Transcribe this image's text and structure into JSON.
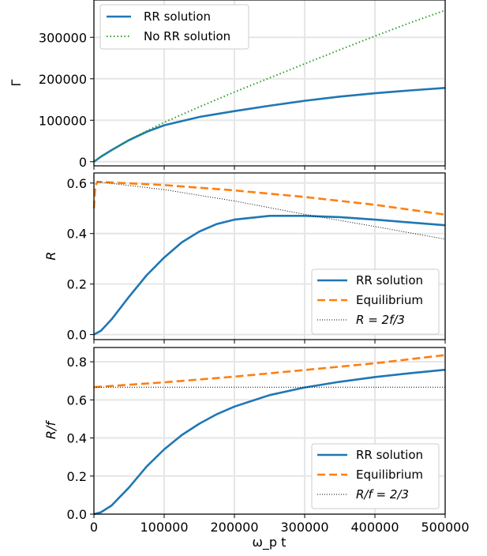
{
  "colors": {
    "blue": "#1f77b4",
    "orange": "#ff7f0e",
    "green": "#2ca02c",
    "black": "#000000",
    "grid": "#e6e6e6",
    "legend_border": "#cccccc"
  },
  "chart_data": [
    {
      "type": "line",
      "ylabel": "Γ",
      "xlim": [
        0,
        500000
      ],
      "ylim": [
        -10000,
        390000
      ],
      "yticks": [
        0,
        100000,
        200000,
        300000
      ],
      "ytick_labels": [
        "0",
        "100000",
        "200000",
        "300000"
      ],
      "xticks": [
        0,
        100000,
        200000,
        300000,
        400000,
        500000
      ],
      "grid": true,
      "legend_position": "top-left",
      "series": [
        {
          "name": "RR solution",
          "color": "#1f77b4",
          "style": "solid",
          "x": [
            0,
            10000,
            25000,
            50000,
            75000,
            100000,
            150000,
            200000,
            250000,
            300000,
            350000,
            400000,
            450000,
            500000
          ],
          "y": [
            0,
            12000,
            28000,
            52000,
            72000,
            88000,
            108000,
            122000,
            135000,
            147000,
            157000,
            165000,
            172000,
            178000
          ]
        },
        {
          "name": "No RR solution",
          "color": "#2ca02c",
          "style": "dotted",
          "x": [
            0,
            10000,
            25000,
            50000,
            100000,
            150000,
            200000,
            250000,
            300000,
            350000,
            400000,
            450000,
            500000
          ],
          "y": [
            0,
            13000,
            28000,
            53000,
            95000,
            132000,
            168000,
            202000,
            236000,
            270000,
            303000,
            335000,
            365000
          ]
        }
      ]
    },
    {
      "type": "line",
      "ylabel": "R",
      "xlim": [
        0,
        500000
      ],
      "ylim": [
        -0.02,
        0.64
      ],
      "yticks": [
        0.0,
        0.2,
        0.4,
        0.6
      ],
      "ytick_labels": [
        "0.0",
        "0.2",
        "0.4",
        "0.6"
      ],
      "xticks": [
        0,
        100000,
        200000,
        300000,
        400000,
        500000
      ],
      "grid": true,
      "legend_position": "bottom-right",
      "series": [
        {
          "name": "RR solution",
          "color": "#1f77b4",
          "style": "solid",
          "x": [
            0,
            10000,
            25000,
            50000,
            75000,
            100000,
            125000,
            150000,
            175000,
            200000,
            250000,
            300000,
            350000,
            400000,
            450000,
            500000
          ],
          "y": [
            0.0,
            0.015,
            0.06,
            0.15,
            0.235,
            0.305,
            0.365,
            0.408,
            0.438,
            0.455,
            0.47,
            0.47,
            0.465,
            0.455,
            0.444,
            0.433
          ]
        },
        {
          "name": "Equilibrium",
          "color": "#ff7f0e",
          "style": "dashed",
          "x": [
            0,
            2000,
            5000,
            100000,
            200000,
            300000,
            400000,
            500000
          ],
          "y": [
            0.5,
            0.59,
            0.605,
            0.592,
            0.571,
            0.545,
            0.514,
            0.475
          ]
        },
        {
          "name": "R = 2f/3",
          "color": "#000000",
          "style": "dotted",
          "x": [
            5000,
            100000,
            200000,
            300000,
            400000,
            500000
          ],
          "y": [
            0.605,
            0.574,
            0.529,
            0.476,
            0.428,
            0.378
          ]
        }
      ]
    },
    {
      "type": "line",
      "ylabel": "R/f",
      "xlabel": "ω_p t",
      "xlim": [
        0,
        500000
      ],
      "xtick_labels": [
        "0",
        "100000",
        "200000",
        "300000",
        "400000",
        "500000"
      ],
      "ylim": [
        0.0,
        0.875
      ],
      "yticks": [
        0.0,
        0.2,
        0.4,
        0.6,
        0.8
      ],
      "ytick_labels": [
        "0.0",
        "0.2",
        "0.4",
        "0.6",
        "0.8"
      ],
      "xticks": [
        0,
        100000,
        200000,
        300000,
        400000,
        500000
      ],
      "grid": true,
      "legend_position": "bottom-right",
      "series": [
        {
          "name": "RR solution",
          "color": "#1f77b4",
          "style": "solid",
          "x": [
            0,
            10000,
            25000,
            50000,
            75000,
            100000,
            125000,
            150000,
            175000,
            200000,
            250000,
            300000,
            350000,
            400000,
            450000,
            500000
          ],
          "y": [
            0.0,
            0.01,
            0.045,
            0.14,
            0.25,
            0.34,
            0.415,
            0.475,
            0.525,
            0.565,
            0.625,
            0.665,
            0.695,
            0.72,
            0.74,
            0.758
          ]
        },
        {
          "name": "Equilibrium",
          "color": "#ff7f0e",
          "style": "dashed",
          "x": [
            0,
            100000,
            200000,
            300000,
            400000,
            500000
          ],
          "y": [
            0.667,
            0.692,
            0.722,
            0.757,
            0.792,
            0.835
          ]
        },
        {
          "name": "R/f = 2/3",
          "color": "#000000",
          "style": "dotted",
          "x": [
            0,
            500000
          ],
          "y": [
            0.667,
            0.667
          ]
        }
      ]
    }
  ]
}
